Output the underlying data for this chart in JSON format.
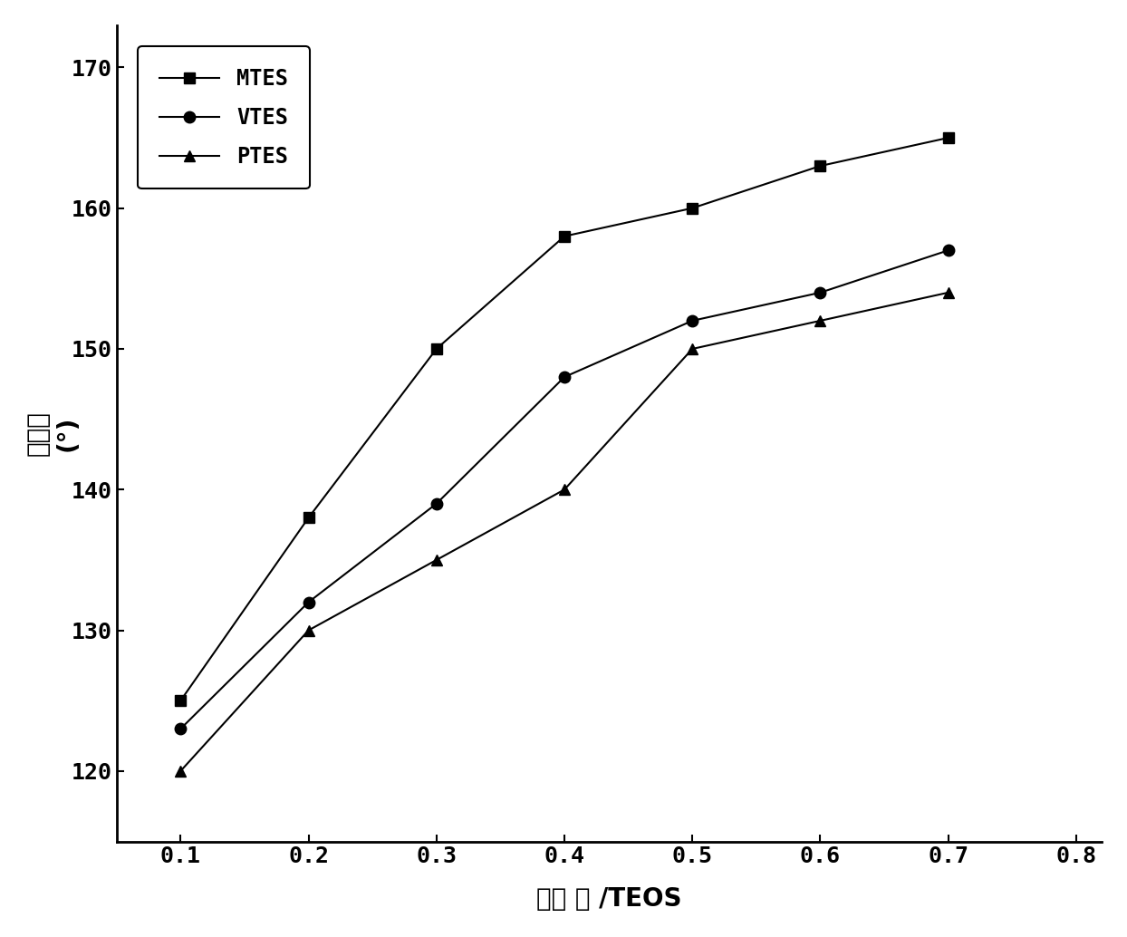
{
  "title": "",
  "xlabel": "改性 剂 /TEOS",
  "ylabel_line1": "接触角",
  "ylabel_line2": "(°)",
  "xlim": [
    0.05,
    0.82
  ],
  "ylim": [
    115,
    173
  ],
  "xticks": [
    0.1,
    0.2,
    0.3,
    0.4,
    0.5,
    0.6,
    0.7,
    0.8
  ],
  "xtick_labels": [
    "0.1",
    "0.2",
    "0.3",
    "0.4",
    "0.5",
    "0.6",
    "0.7",
    "0.8"
  ],
  "yticks": [
    120,
    130,
    140,
    150,
    160,
    170
  ],
  "ytick_labels": [
    "120",
    "130",
    "140",
    "150",
    "160",
    "170"
  ],
  "MTES_x": [
    0.1,
    0.2,
    0.3,
    0.4,
    0.5,
    0.6,
    0.7
  ],
  "MTES_y": [
    125,
    138,
    150,
    158,
    160,
    163,
    165
  ],
  "VTES_x": [
    0.1,
    0.2,
    0.3,
    0.4,
    0.5,
    0.6,
    0.7
  ],
  "VTES_y": [
    123,
    132,
    139,
    148,
    152,
    154,
    157
  ],
  "PTES_x": [
    0.1,
    0.2,
    0.3,
    0.4,
    0.5,
    0.6,
    0.7
  ],
  "PTES_y": [
    120,
    130,
    135,
    140,
    150,
    152,
    154
  ],
  "line_color": "#000000",
  "marker_MTES": "s",
  "marker_VTES": "o",
  "marker_PTES": "^",
  "markersize": 9,
  "linewidth": 1.5,
  "legend_labels": [
    "MTES",
    "VTES",
    "PTES"
  ],
  "xlabel_fontsize": 20,
  "ylabel_fontsize": 20,
  "tick_fontsize": 18,
  "legend_fontsize": 17,
  "background_color": "#ffffff"
}
